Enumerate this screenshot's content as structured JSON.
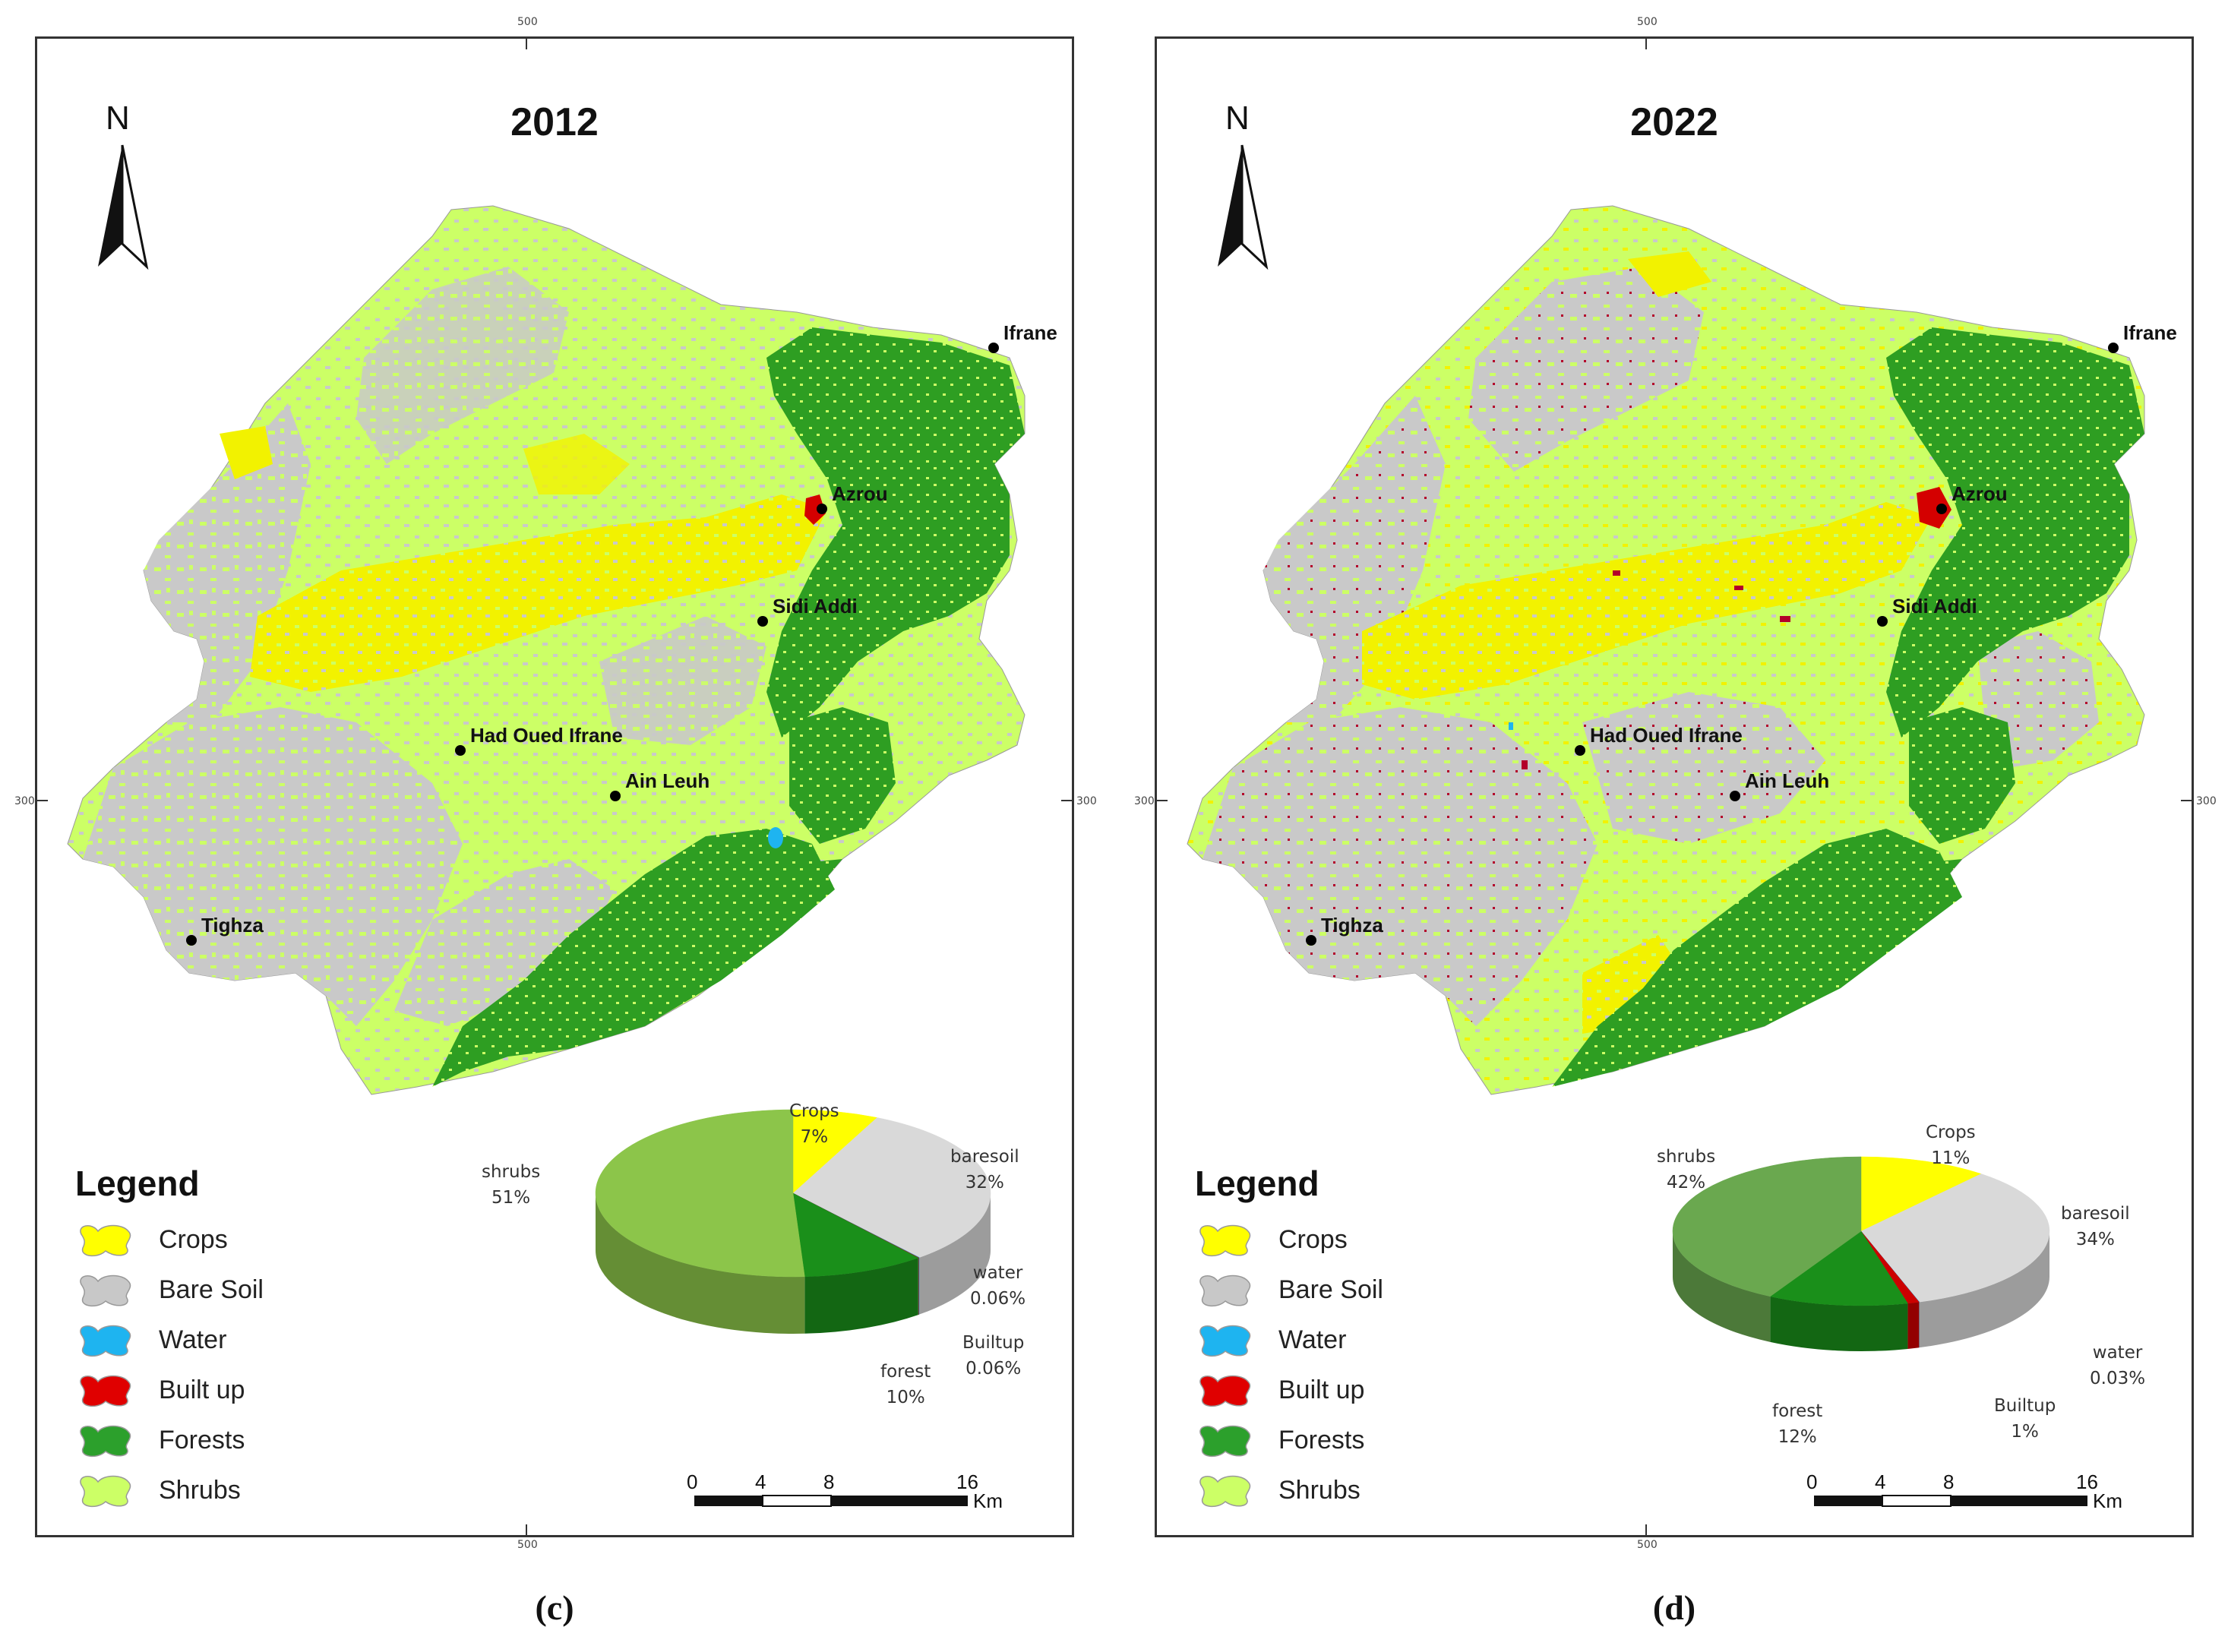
{
  "panels": [
    {
      "year": "2012",
      "caption": "(c)",
      "tick_top": "500",
      "tick_bottom": "500",
      "tick_left": "300",
      "tick_right": "300",
      "north_label": "N",
      "towns": [
        "Ifrane",
        "Azrou",
        "Sidi Addi",
        "Had Oued Ifrane",
        "Ain Leuh",
        "Tighza"
      ],
      "legend": {
        "title": "Legend",
        "items": [
          {
            "label": "Crops",
            "color": "#ffff00"
          },
          {
            "label": "Bare Soil",
            "color": "#c8c8c8"
          },
          {
            "label": "Water",
            "color": "#1eb4f0"
          },
          {
            "label": "Built up",
            "color": "#e00000"
          },
          {
            "label": "Forests",
            "color": "#2ca02c"
          },
          {
            "label": "Shrubs",
            "color": "#ccff66"
          }
        ]
      },
      "pie_labels": [
        {
          "name": "Crops",
          "value": "7%"
        },
        {
          "name": "baresoil",
          "value": "32%"
        },
        {
          "name": "water",
          "value": "0.06%"
        },
        {
          "name": "Builtup",
          "value": "0.06%"
        },
        {
          "name": "forest",
          "value": "10%"
        },
        {
          "name": "shrubs",
          "value": "51%"
        }
      ],
      "scale": {
        "ticks": [
          "0",
          "4",
          "8",
          "16"
        ],
        "unit": "Km"
      }
    },
    {
      "year": "2022",
      "caption": "(d)",
      "tick_top": "500",
      "tick_bottom": "500",
      "tick_left": "300",
      "tick_right": "300",
      "north_label": "N",
      "towns": [
        "Ifrane",
        "Azrou",
        "Sidi Addi",
        "Had Oued Ifrane",
        "Ain Leuh",
        "Tighza"
      ],
      "legend": {
        "title": "Legend",
        "items": [
          {
            "label": "Crops",
            "color": "#ffff00"
          },
          {
            "label": "Bare Soil",
            "color": "#c8c8c8"
          },
          {
            "label": "Water",
            "color": "#1eb4f0"
          },
          {
            "label": "Built up",
            "color": "#e00000"
          },
          {
            "label": "Forests",
            "color": "#2ca02c"
          },
          {
            "label": "Shrubs",
            "color": "#ccff66"
          }
        ]
      },
      "pie_labels": [
        {
          "name": "Crops",
          "value": "11%"
        },
        {
          "name": "baresoil",
          "value": "34%"
        },
        {
          "name": "water",
          "value": "0.03%"
        },
        {
          "name": "Builtup",
          "value": "1%"
        },
        {
          "name": "forest",
          "value": "12%"
        },
        {
          "name": "shrubs",
          "value": "42%"
        }
      ],
      "scale": {
        "ticks": [
          "0",
          "4",
          "8",
          "16"
        ],
        "unit": "Km"
      }
    }
  ],
  "chart_data": [
    {
      "type": "pie",
      "categories": [
        "Crops",
        "baresoil",
        "water",
        "Builtup",
        "forest",
        "shrubs"
      ],
      "values": [
        7,
        32,
        0.06,
        0.06,
        10,
        51
      ],
      "colors": [
        "#ffff00",
        "#d9d9d9",
        "#1eb4f0",
        "#cc0000",
        "#1a8f1a",
        "#8cc54a"
      ]
    },
    {
      "type": "pie",
      "categories": [
        "Crops",
        "baresoil",
        "water",
        "Builtup",
        "forest",
        "shrubs"
      ],
      "values": [
        11,
        34,
        0.03,
        1,
        12,
        42
      ],
      "colors": [
        "#ffff00",
        "#d9d9d9",
        "#1eb4f0",
        "#cc0000",
        "#1a8f1a",
        "#6aa84f"
      ]
    }
  ]
}
